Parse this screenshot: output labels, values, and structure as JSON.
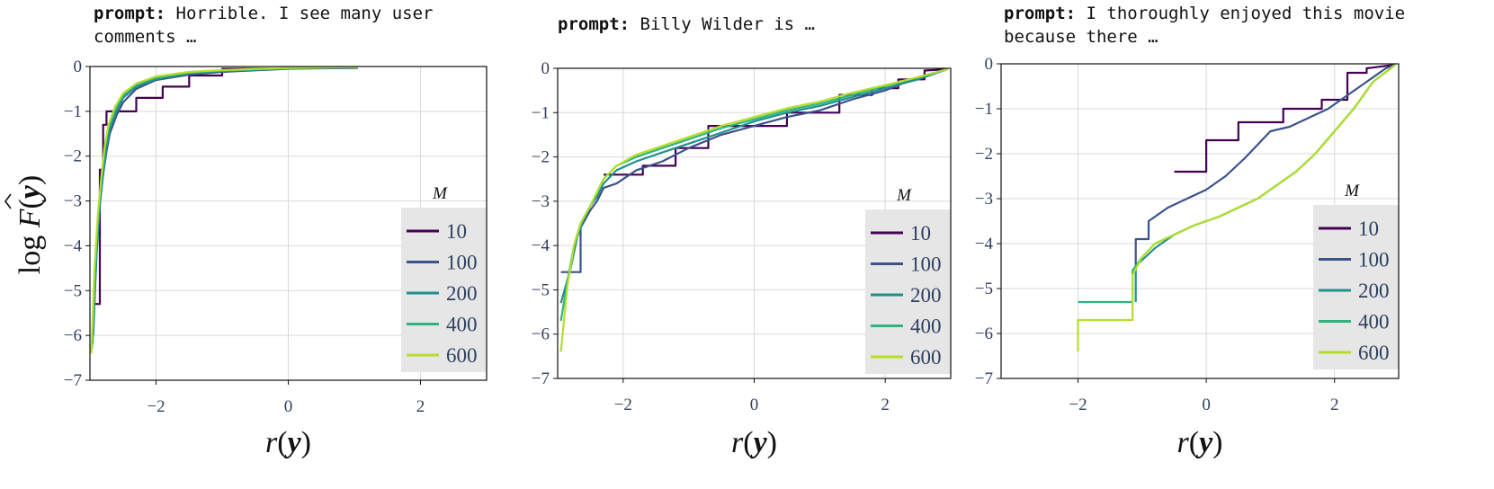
{
  "ylabel": "log F(y)",
  "xlabel": "r(y)",
  "legend_title": "M",
  "colors": {
    "10": "#440154",
    "100": "#3b528b",
    "200": "#21908d",
    "400": "#2fb47c",
    "600": "#b5de2b"
  },
  "panels": [
    {
      "prompt_key": "prompt:",
      "prompt_text": " Horrible. I see many user comments …"
    },
    {
      "prompt_key": "prompt:",
      "prompt_text": " Billy Wilder is …"
    },
    {
      "prompt_key": "prompt:",
      "prompt_text": " I thoroughly enjoyed this movie because there …"
    }
  ],
  "chart_data": [
    {
      "type": "line",
      "xlabel": "r(y)",
      "ylabel": "log F(y)",
      "xlim": [
        -3,
        3
      ],
      "ylim": [
        -7,
        0
      ],
      "xticks": [
        -2,
        0,
        2
      ],
      "yticks": [
        0,
        -1,
        -2,
        -3,
        -4,
        -5,
        -6,
        -7
      ],
      "legend": {
        "title": "M",
        "position": "bottom-right"
      },
      "series": [
        {
          "name": "10",
          "x": [
            -2.92,
            -2.85,
            -2.85,
            -2.8,
            -2.8,
            -2.75,
            -2.75,
            -2.3,
            -2.3,
            -1.9,
            -1.9,
            -1.5,
            -1.5,
            -1.0,
            -1.0,
            1.05
          ],
          "y": [
            -5.3,
            -5.3,
            -2.3,
            -2.3,
            -1.3,
            -1.3,
            -1.0,
            -1.0,
            -0.7,
            -0.7,
            -0.45,
            -0.45,
            -0.2,
            -0.2,
            -0.05,
            -0.03
          ]
        },
        {
          "name": "100",
          "x": [
            -2.95,
            -2.9,
            -2.85,
            -2.8,
            -2.75,
            -2.7,
            -2.6,
            -2.5,
            -2.3,
            -2.0,
            -1.5,
            -1.0,
            0.0,
            1.05
          ],
          "y": [
            -6.0,
            -4.0,
            -3.0,
            -2.4,
            -1.9,
            -1.5,
            -1.1,
            -0.8,
            -0.5,
            -0.3,
            -0.18,
            -0.12,
            -0.05,
            -0.03
          ]
        },
        {
          "name": "200",
          "x": [
            -2.96,
            -2.9,
            -2.85,
            -2.8,
            -2.75,
            -2.7,
            -2.6,
            -2.5,
            -2.3,
            -2.0,
            -1.5,
            -1.0,
            0.0,
            1.05
          ],
          "y": [
            -6.2,
            -4.2,
            -3.1,
            -2.4,
            -1.8,
            -1.4,
            -1.0,
            -0.7,
            -0.45,
            -0.28,
            -0.15,
            -0.1,
            -0.04,
            -0.02
          ]
        },
        {
          "name": "400",
          "x": [
            -2.97,
            -2.92,
            -2.87,
            -2.82,
            -2.77,
            -2.72,
            -2.62,
            -2.5,
            -2.3,
            -2.0,
            -1.5,
            -1.0,
            0.0,
            1.05
          ],
          "y": [
            -6.3,
            -4.4,
            -3.2,
            -2.4,
            -1.8,
            -1.35,
            -0.95,
            -0.65,
            -0.4,
            -0.25,
            -0.14,
            -0.09,
            -0.04,
            -0.02
          ]
        },
        {
          "name": "600",
          "x": [
            -2.98,
            -2.93,
            -2.88,
            -2.83,
            -2.78,
            -2.72,
            -2.62,
            -2.5,
            -2.3,
            -2.0,
            -1.5,
            -1.0,
            0.0,
            1.05
          ],
          "y": [
            -6.4,
            -4.5,
            -3.3,
            -2.5,
            -1.8,
            -1.3,
            -0.9,
            -0.6,
            -0.38,
            -0.22,
            -0.12,
            -0.08,
            -0.03,
            -0.01
          ]
        }
      ]
    },
    {
      "type": "line",
      "xlabel": "r(y)",
      "ylabel": "log F(y)",
      "xlim": [
        -3,
        3
      ],
      "ylim": [
        -7,
        0
      ],
      "xticks": [
        -2,
        0,
        2
      ],
      "yticks": [
        0,
        -1,
        -2,
        -3,
        -4,
        -5,
        -6,
        -7
      ],
      "legend": {
        "title": "M",
        "position": "bottom-right"
      },
      "series": [
        {
          "name": "10",
          "x": [
            -2.3,
            -1.7,
            -1.7,
            -1.2,
            -1.2,
            -0.7,
            -0.7,
            -0.2,
            -0.2,
            0.5,
            0.5,
            1.3,
            1.3,
            1.8,
            1.8,
            2.2,
            2.2,
            2.6,
            2.6,
            2.95
          ],
          "y": [
            -2.4,
            -2.4,
            -2.2,
            -2.2,
            -1.8,
            -1.8,
            -1.3,
            -1.3,
            -1.3,
            -1.3,
            -1.0,
            -1.0,
            -0.6,
            -0.6,
            -0.45,
            -0.45,
            -0.25,
            -0.25,
            -0.05,
            -0.02
          ]
        },
        {
          "name": "100",
          "x": [
            -2.95,
            -2.65,
            -2.65,
            -2.5,
            -2.4,
            -2.3,
            -2.1,
            -1.8,
            -1.4,
            -1.0,
            -0.5,
            0.0,
            0.5,
            1.0,
            1.5,
            2.0,
            2.5,
            2.95
          ],
          "y": [
            -4.6,
            -4.6,
            -3.6,
            -3.2,
            -3.0,
            -2.7,
            -2.6,
            -2.3,
            -2.1,
            -1.8,
            -1.5,
            -1.3,
            -1.1,
            -0.95,
            -0.7,
            -0.5,
            -0.2,
            -0.02
          ]
        },
        {
          "name": "200",
          "x": [
            -2.95,
            -2.8,
            -2.7,
            -2.6,
            -2.5,
            -2.4,
            -2.3,
            -2.1,
            -1.8,
            -1.4,
            -1.0,
            -0.5,
            0.0,
            0.5,
            1.0,
            1.5,
            2.0,
            2.5,
            2.95
          ],
          "y": [
            -5.3,
            -4.5,
            -3.8,
            -3.4,
            -3.1,
            -2.9,
            -2.6,
            -2.3,
            -2.1,
            -1.9,
            -1.7,
            -1.45,
            -1.2,
            -1.0,
            -0.85,
            -0.65,
            -0.45,
            -0.25,
            -0.02
          ]
        },
        {
          "name": "400",
          "x": [
            -2.95,
            -2.85,
            -2.75,
            -2.65,
            -2.5,
            -2.4,
            -2.3,
            -2.1,
            -1.8,
            -1.4,
            -1.0,
            -0.5,
            0.0,
            0.5,
            1.0,
            1.5,
            2.0,
            2.5,
            2.95
          ],
          "y": [
            -5.7,
            -4.8,
            -4.0,
            -3.5,
            -3.1,
            -2.8,
            -2.5,
            -2.2,
            -2.0,
            -1.8,
            -1.6,
            -1.35,
            -1.15,
            -0.95,
            -0.8,
            -0.6,
            -0.4,
            -0.2,
            -0.02
          ]
        },
        {
          "name": "600",
          "x": [
            -2.95,
            -2.85,
            -2.75,
            -2.65,
            -2.5,
            -2.4,
            -2.3,
            -2.1,
            -1.8,
            -1.4,
            -1.0,
            -0.5,
            0.0,
            0.5,
            1.0,
            1.5,
            2.0,
            2.5,
            2.95
          ],
          "y": [
            -6.4,
            -4.9,
            -4.0,
            -3.5,
            -3.1,
            -2.8,
            -2.5,
            -2.2,
            -1.95,
            -1.75,
            -1.55,
            -1.3,
            -1.1,
            -0.9,
            -0.75,
            -0.55,
            -0.38,
            -0.2,
            -0.02
          ]
        }
      ]
    },
    {
      "type": "line",
      "xlabel": "r(y)",
      "ylabel": "log F(y)",
      "xlim": [
        -3.2,
        3.0
      ],
      "ylim": [
        -7,
        0
      ],
      "xticks": [
        -2,
        0,
        2
      ],
      "yticks": [
        0,
        -1,
        -2,
        -3,
        -4,
        -5,
        -6,
        -7
      ],
      "legend": {
        "title": "M",
        "position": "bottom-right"
      },
      "series": [
        {
          "name": "10",
          "x": [
            -0.5,
            0.0,
            0.0,
            0.5,
            0.5,
            1.2,
            1.2,
            1.8,
            1.8,
            2.2,
            2.2,
            2.5,
            2.5,
            2.95
          ],
          "y": [
            -2.4,
            -2.4,
            -1.7,
            -1.7,
            -1.3,
            -1.3,
            -1.0,
            -1.0,
            -0.8,
            -0.8,
            -0.2,
            -0.2,
            -0.1,
            -0.02
          ]
        },
        {
          "name": "100",
          "x": [
            -1.1,
            -1.1,
            -0.9,
            -0.9,
            -0.6,
            -0.3,
            0.0,
            0.3,
            0.6,
            0.8,
            1.0,
            1.3,
            1.6,
            1.9,
            2.2,
            2.5,
            2.8,
            2.95
          ],
          "y": [
            -4.5,
            -3.9,
            -3.9,
            -3.5,
            -3.2,
            -3.0,
            -2.8,
            -2.5,
            -2.1,
            -1.8,
            -1.5,
            -1.4,
            -1.2,
            -1.0,
            -0.7,
            -0.4,
            -0.1,
            -0.02
          ]
        },
        {
          "name": "200",
          "x": [
            -1.1,
            -1.1,
            -0.8,
            -0.5,
            -0.2,
            0.2,
            0.5,
            0.8,
            1.1,
            1.4,
            1.7,
            2.0,
            2.3,
            2.6,
            2.95
          ],
          "y": [
            -5.3,
            -4.5,
            -4.1,
            -3.8,
            -3.6,
            -3.4,
            -3.2,
            -3.0,
            -2.7,
            -2.4,
            -2.0,
            -1.5,
            -1.0,
            -0.4,
            -0.02
          ]
        },
        {
          "name": "400",
          "x": [
            -2.0,
            -1.15,
            -1.15,
            -1.0,
            -0.8,
            -0.5,
            -0.2,
            0.2,
            0.5,
            0.8,
            1.1,
            1.4,
            1.7,
            2.0,
            2.3,
            2.6,
            2.95
          ],
          "y": [
            -5.3,
            -5.3,
            -4.6,
            -4.3,
            -4.0,
            -3.8,
            -3.6,
            -3.4,
            -3.2,
            -3.0,
            -2.7,
            -2.4,
            -2.0,
            -1.5,
            -1.0,
            -0.4,
            -0.02
          ]
        },
        {
          "name": "600",
          "x": [
            -2.0,
            -2.0,
            -1.15,
            -1.15,
            -1.0,
            -0.8,
            -0.5,
            -0.2,
            0.2,
            0.5,
            0.8,
            1.1,
            1.4,
            1.7,
            2.0,
            2.3,
            2.6,
            2.95
          ],
          "y": [
            -6.4,
            -5.7,
            -5.7,
            -4.7,
            -4.3,
            -4.0,
            -3.8,
            -3.6,
            -3.4,
            -3.2,
            -3.0,
            -2.7,
            -2.4,
            -2.0,
            -1.5,
            -1.0,
            -0.4,
            -0.02
          ]
        }
      ]
    }
  ]
}
